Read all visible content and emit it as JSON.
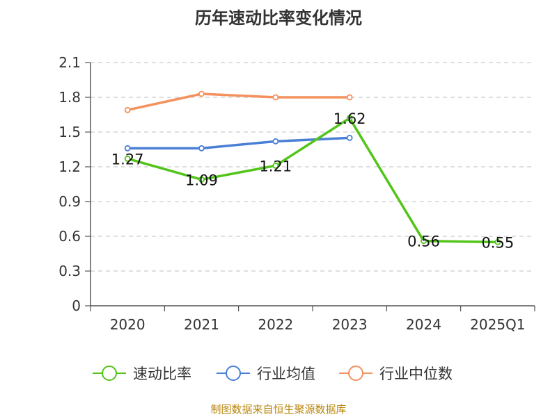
{
  "title": "历年速动比率变化情况",
  "source": "制图数据来自恒生聚源数据库",
  "chart_data": {
    "type": "line",
    "title": "历年速动比率变化情况",
    "categories": [
      "2020",
      "2021",
      "2022",
      "2023",
      "2024",
      "2025Q1"
    ],
    "ylim": [
      0,
      2.1
    ],
    "yticks": [
      "0",
      "0.3",
      "0.6",
      "0.9",
      "1.2",
      "1.5",
      "1.8",
      "2.1"
    ],
    "grid": true,
    "legend_position": "bottom",
    "series": [
      {
        "name": "速动比率",
        "color": "#52c41a",
        "values": [
          1.27,
          1.09,
          1.21,
          1.62,
          0.56,
          0.55
        ],
        "labels": [
          "1.27",
          "1.09",
          "1.21",
          "1.62",
          "0.56",
          "0.55"
        ]
      },
      {
        "name": "行业均值",
        "color": "#4a7fd6",
        "values": [
          1.36,
          1.36,
          1.42,
          1.45,
          null,
          null
        ]
      },
      {
        "name": "行业中位数",
        "color": "#f4915e",
        "values": [
          1.69,
          1.83,
          1.8,
          1.8,
          null,
          null
        ]
      }
    ]
  }
}
